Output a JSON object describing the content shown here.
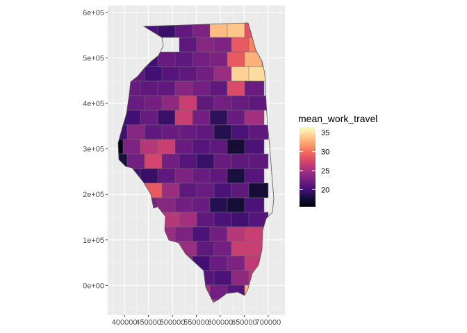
{
  "chart_data": {
    "type": "choropleth",
    "title": "",
    "xlabel": "",
    "ylabel": "",
    "x_ticks": [
      "400000",
      "450000",
      "500000",
      "550000",
      "600000",
      "650000",
      "700000"
    ],
    "y_ticks": [
      "0e+00",
      "1e+05",
      "2e+05",
      "3e+05",
      "4e+05",
      "5e+05",
      "6e+05"
    ],
    "x_tick_values": [
      400000,
      450000,
      500000,
      550000,
      600000,
      650000,
      700000
    ],
    "y_tick_values": [
      0,
      100000,
      200000,
      300000,
      400000,
      500000,
      600000
    ],
    "xlim": [
      365000,
      735000
    ],
    "ylim": [
      -65000,
      615000
    ],
    "grid": true,
    "panel_background": "#ebebeb",
    "legend": {
      "title": "mean_work_travel",
      "position": "right",
      "range": [
        15.5,
        36.5
      ],
      "ticks": [
        "20",
        "25",
        "30",
        "35"
      ],
      "tick_values": [
        20,
        25,
        30,
        35
      ],
      "palette": "magma",
      "colors": [
        "#000004",
        "#180f3e",
        "#451077",
        "#721f81",
        "#9f2f7f",
        "#cd4071",
        "#f1605d",
        "#fd9567",
        "#feca8d",
        "#fcfdbf"
      ]
    },
    "counties": [
      {
        "c": 10,
        "r": 0,
        "v": 20.5
      },
      {
        "c": 11,
        "r": 0,
        "v": 19.5
      },
      {
        "c": 12,
        "r": 0,
        "v": 21.5
      },
      {
        "c": 13,
        "r": 0,
        "v": 23
      },
      {
        "c": 14,
        "r": 0,
        "v": 33.5
      },
      {
        "c": 15,
        "r": 0,
        "v": 34
      },
      {
        "c": 16,
        "r": 0,
        "v": 28.5
      },
      {
        "c": 12,
        "r": 1,
        "v": 21.5
      },
      {
        "c": 13,
        "r": 1,
        "v": 23.5
      },
      {
        "c": 14,
        "r": 1,
        "v": 23
      },
      {
        "c": 15,
        "r": 1,
        "v": 29
      },
      {
        "c": 16,
        "r": 1,
        "v": 31
      },
      {
        "c": 17,
        "r": 1,
        "v": 32
      },
      {
        "c": 10,
        "r": 2,
        "v": 20
      },
      {
        "c": 11,
        "r": 2,
        "v": 22
      },
      {
        "c": 12,
        "r": 2,
        "v": 21.5
      },
      {
        "c": 13,
        "r": 2,
        "v": 22.5
      },
      {
        "c": 14,
        "r": 2,
        "v": 23
      },
      {
        "c": 15,
        "r": 2,
        "v": 29
      },
      {
        "c": 16,
        "r": 2,
        "v": 33
      },
      {
        "c": 17,
        "r": 2,
        "v": 31
      },
      {
        "c": 9,
        "r": 3,
        "v": 21.5
      },
      {
        "c": 10,
        "r": 3,
        "v": 20
      },
      {
        "c": 11,
        "r": 3,
        "v": 21
      },
      {
        "c": 12,
        "r": 3,
        "v": 21.5
      },
      {
        "c": 13,
        "r": 3,
        "v": 22.5
      },
      {
        "c": 14,
        "r": 3,
        "v": 24.5
      },
      {
        "c": 15,
        "r": 3,
        "v": 34.5
      },
      {
        "c": 16,
        "r": 3,
        "v": 35
      },
      {
        "c": 8,
        "r": 4,
        "v": 23
      },
      {
        "c": 9,
        "r": 4,
        "v": 22
      },
      {
        "c": 10,
        "r": 4,
        "v": 21.5
      },
      {
        "c": 11,
        "r": 4,
        "v": 21.5
      },
      {
        "c": 12,
        "r": 4,
        "v": 23.5
      },
      {
        "c": 13,
        "r": 4,
        "v": 22.5
      },
      {
        "c": 14,
        "r": 4,
        "v": 21.5
      },
      {
        "c": 15,
        "r": 4,
        "v": 28
      },
      {
        "c": 16,
        "r": 4,
        "v": 22
      },
      {
        "c": 8,
        "r": 5,
        "v": 28
      },
      {
        "c": 9,
        "r": 5,
        "v": 22
      },
      {
        "c": 10,
        "r": 5,
        "v": 22.5
      },
      {
        "c": 11,
        "r": 5,
        "v": 24
      },
      {
        "c": 12,
        "r": 5,
        "v": 27
      },
      {
        "c": 13,
        "r": 5,
        "v": 21.5
      },
      {
        "c": 14,
        "r": 5,
        "v": 22.5
      },
      {
        "c": 15,
        "r": 5,
        "v": 22
      },
      {
        "c": 16,
        "r": 5,
        "v": 21.5
      },
      {
        "c": 8,
        "r": 6,
        "v": 22
      },
      {
        "c": 9,
        "r": 6,
        "v": 20
      },
      {
        "c": 10,
        "r": 6,
        "v": 22
      },
      {
        "c": 11,
        "r": 6,
        "v": 19.5
      },
      {
        "c": 12,
        "r": 6,
        "v": 27
      },
      {
        "c": 13,
        "r": 6,
        "v": 22.5
      },
      {
        "c": 14,
        "r": 6,
        "v": 19
      },
      {
        "c": 15,
        "r": 6,
        "v": 22
      },
      {
        "c": 16,
        "r": 6,
        "v": 25
      },
      {
        "c": 7,
        "r": 7,
        "v": 22
      },
      {
        "c": 8,
        "r": 7,
        "v": 20
      },
      {
        "c": 9,
        "r": 7,
        "v": 23.5
      },
      {
        "c": 10,
        "r": 7,
        "v": 21.5
      },
      {
        "c": 11,
        "r": 7,
        "v": 22
      },
      {
        "c": 12,
        "r": 7,
        "v": 22
      },
      {
        "c": 13,
        "r": 7,
        "v": 21.5
      },
      {
        "c": 14,
        "r": 7,
        "v": 18.5
      },
      {
        "c": 15,
        "r": 7,
        "v": 20.5
      },
      {
        "c": 16,
        "r": 7,
        "v": 21.5
      },
      {
        "c": 7,
        "r": 8,
        "v": 22.5
      },
      {
        "c": 8,
        "r": 8,
        "v": 16
      },
      {
        "c": 9,
        "r": 8,
        "v": 23
      },
      {
        "c": 10,
        "r": 8,
        "v": 26
      },
      {
        "c": 11,
        "r": 8,
        "v": 27
      },
      {
        "c": 12,
        "r": 8,
        "v": 22
      },
      {
        "c": 13,
        "r": 8,
        "v": 21
      },
      {
        "c": 14,
        "r": 8,
        "v": 21.5
      },
      {
        "c": 15,
        "r": 8,
        "v": 17.5
      },
      {
        "c": 16,
        "r": 8,
        "v": 20.5
      },
      {
        "c": 7,
        "r": 9,
        "v": 17
      },
      {
        "c": 8,
        "r": 9,
        "v": 18
      },
      {
        "c": 9,
        "r": 9,
        "v": 22.5
      },
      {
        "c": 10,
        "r": 9,
        "v": 27.5
      },
      {
        "c": 11,
        "r": 9,
        "v": 22.5
      },
      {
        "c": 12,
        "r": 9,
        "v": 21
      },
      {
        "c": 13,
        "r": 9,
        "v": 19.5
      },
      {
        "c": 14,
        "r": 9,
        "v": 22
      },
      {
        "c": 15,
        "r": 9,
        "v": 21.5
      },
      {
        "c": 16,
        "r": 9,
        "v": 21.5
      },
      {
        "c": 7,
        "r": 10,
        "v": 22
      },
      {
        "c": 8,
        "r": 10,
        "v": 21.5
      },
      {
        "c": 9,
        "r": 10,
        "v": 20
      },
      {
        "c": 10,
        "r": 10,
        "v": 19.5
      },
      {
        "c": 11,
        "r": 10,
        "v": 21.5
      },
      {
        "c": 12,
        "r": 10,
        "v": 23
      },
      {
        "c": 13,
        "r": 10,
        "v": 22
      },
      {
        "c": 14,
        "r": 10,
        "v": 21.5
      },
      {
        "c": 15,
        "r": 10,
        "v": 18
      },
      {
        "c": 16,
        "r": 10,
        "v": 21
      },
      {
        "c": 8,
        "r": 11,
        "v": 36.5
      },
      {
        "c": 9,
        "r": 11,
        "v": 28
      },
      {
        "c": 10,
        "r": 11,
        "v": 29
      },
      {
        "c": 11,
        "r": 11,
        "v": 24.5
      },
      {
        "c": 12,
        "r": 11,
        "v": 21.5
      },
      {
        "c": 13,
        "r": 11,
        "v": 22
      },
      {
        "c": 14,
        "r": 11,
        "v": 20.5
      },
      {
        "c": 15,
        "r": 11,
        "v": 21.5
      },
      {
        "c": 16,
        "r": 11,
        "v": 17.5
      },
      {
        "c": 8,
        "r": 12,
        "v": 34
      },
      {
        "c": 9,
        "r": 12,
        "v": 29
      },
      {
        "c": 10,
        "r": 12,
        "v": 23
      },
      {
        "c": 11,
        "r": 12,
        "v": 23.5
      },
      {
        "c": 12,
        "r": 12,
        "v": 22.5
      },
      {
        "c": 13,
        "r": 12,
        "v": 22
      },
      {
        "c": 14,
        "r": 12,
        "v": 18.5
      },
      {
        "c": 15,
        "r": 12,
        "v": 17.5
      },
      {
        "c": 16,
        "r": 12,
        "v": 20.5
      },
      {
        "c": 9,
        "r": 13,
        "v": 24
      },
      {
        "c": 10,
        "r": 13,
        "v": 23
      },
      {
        "c": 11,
        "r": 13,
        "v": 26
      },
      {
        "c": 12,
        "r": 13,
        "v": 25
      },
      {
        "c": 13,
        "r": 13,
        "v": 21.5
      },
      {
        "c": 14,
        "r": 13,
        "v": 20.5
      },
      {
        "c": 15,
        "r": 13,
        "v": 20
      },
      {
        "c": 16,
        "r": 13,
        "v": 21
      },
      {
        "c": 10,
        "r": 14,
        "v": 22.5
      },
      {
        "c": 11,
        "r": 14,
        "v": 24.5
      },
      {
        "c": 12,
        "r": 14,
        "v": 23
      },
      {
        "c": 13,
        "r": 14,
        "v": 20.5
      },
      {
        "c": 14,
        "r": 14,
        "v": 22.5
      },
      {
        "c": 15,
        "r": 14,
        "v": 26
      },
      {
        "c": 16,
        "r": 14,
        "v": 27
      },
      {
        "c": 10,
        "r": 15,
        "v": 30
      },
      {
        "c": 11,
        "r": 15,
        "v": 25
      },
      {
        "c": 12,
        "r": 15,
        "v": 24.5
      },
      {
        "c": 13,
        "r": 15,
        "v": 21.5
      },
      {
        "c": 14,
        "r": 15,
        "v": 22.5
      },
      {
        "c": 15,
        "r": 15,
        "v": 27
      },
      {
        "c": 16,
        "r": 15,
        "v": 27
      },
      {
        "c": 11,
        "r": 16,
        "v": 22
      },
      {
        "c": 12,
        "r": 16,
        "v": 23.5
      },
      {
        "c": 13,
        "r": 16,
        "v": 20
      },
      {
        "c": 14,
        "r": 16,
        "v": 22
      },
      {
        "c": 15,
        "r": 16,
        "v": 23
      },
      {
        "c": 16,
        "r": 16,
        "v": 26.5
      },
      {
        "c": 12,
        "r": 17,
        "v": 17
      },
      {
        "c": 13,
        "r": 17,
        "v": 21
      },
      {
        "c": 14,
        "r": 17,
        "v": 20.5
      },
      {
        "c": 15,
        "r": 17,
        "v": 24
      },
      {
        "c": 16,
        "r": 17,
        "v": 26
      },
      {
        "c": 13,
        "r": 18,
        "v": 25
      },
      {
        "c": 14,
        "r": 18,
        "v": 22.5
      },
      {
        "c": 15,
        "r": 18,
        "v": 21
      },
      {
        "c": 16,
        "r": 18,
        "v": 33
      },
      {
        "c": 13,
        "r": 19,
        "v": 27
      },
      {
        "c": 14,
        "r": 19,
        "v": 23.5
      },
      {
        "c": 15,
        "r": 19,
        "v": 19.5
      }
    ]
  }
}
